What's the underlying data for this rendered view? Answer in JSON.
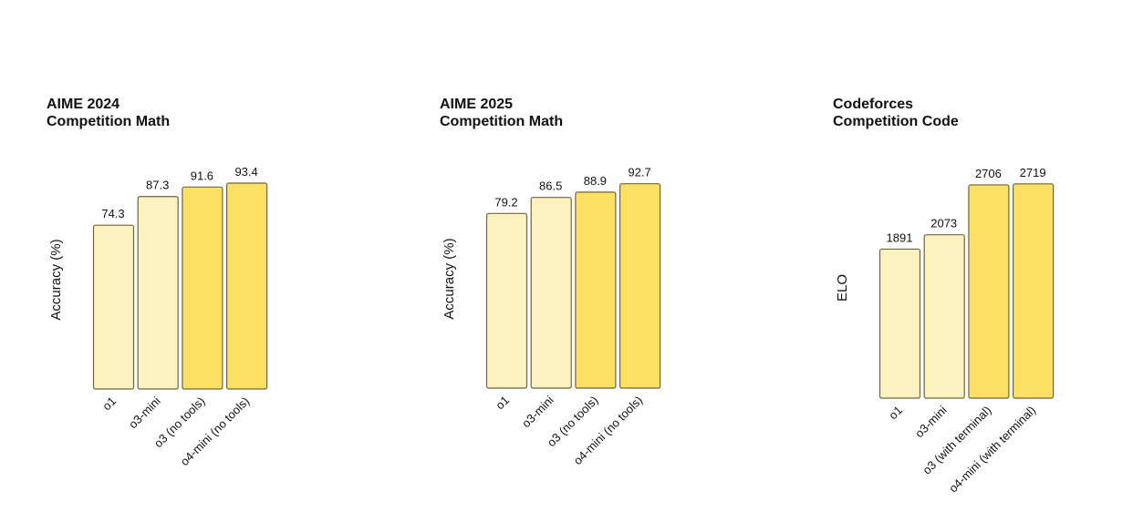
{
  "colors": {
    "light": "#FCF2C0",
    "dark": "#FCE063",
    "border": "#6E6540"
  },
  "chart_data": [
    {
      "type": "bar",
      "title_line1": "AIME 2024",
      "title_line2": "Competition Math",
      "ylabel": "Accuracy (%)",
      "categories": [
        "o1",
        "o3-mini",
        "o3 (no tools)",
        "o4-mini (no tools)"
      ],
      "values": [
        74.3,
        87.3,
        91.6,
        93.4
      ],
      "labels": [
        "74.3",
        "87.3",
        "91.6",
        "93.4"
      ],
      "shade": [
        "light",
        "light",
        "dark",
        "dark"
      ],
      "ylim": [
        0,
        100
      ]
    },
    {
      "type": "bar",
      "title_line1": "AIME 2025",
      "title_line2": "Competition Math",
      "ylabel": "Accuracy (%)",
      "categories": [
        "o1",
        "o3-mini",
        "o3 (no tools)",
        "o4-mini (no tools)"
      ],
      "values": [
        79.2,
        86.5,
        88.9,
        92.7
      ],
      "labels": [
        "79.2",
        "86.5",
        "88.9",
        "92.7"
      ],
      "shade": [
        "light",
        "light",
        "dark",
        "dark"
      ],
      "ylim": [
        0,
        100
      ]
    },
    {
      "type": "bar",
      "title_line1": "Codeforces",
      "title_line2": "Competition Code",
      "ylabel": "ELO",
      "categories": [
        "o1",
        "o3-mini",
        "o3 (with terminal)",
        "o4-mini (with terminal)"
      ],
      "values": [
        1891,
        2073,
        2706,
        2719
      ],
      "labels": [
        "1891",
        "2073",
        "2706",
        "2719"
      ],
      "shade": [
        "light",
        "light",
        "dark",
        "dark"
      ],
      "ylim": [
        0,
        3000
      ]
    }
  ]
}
